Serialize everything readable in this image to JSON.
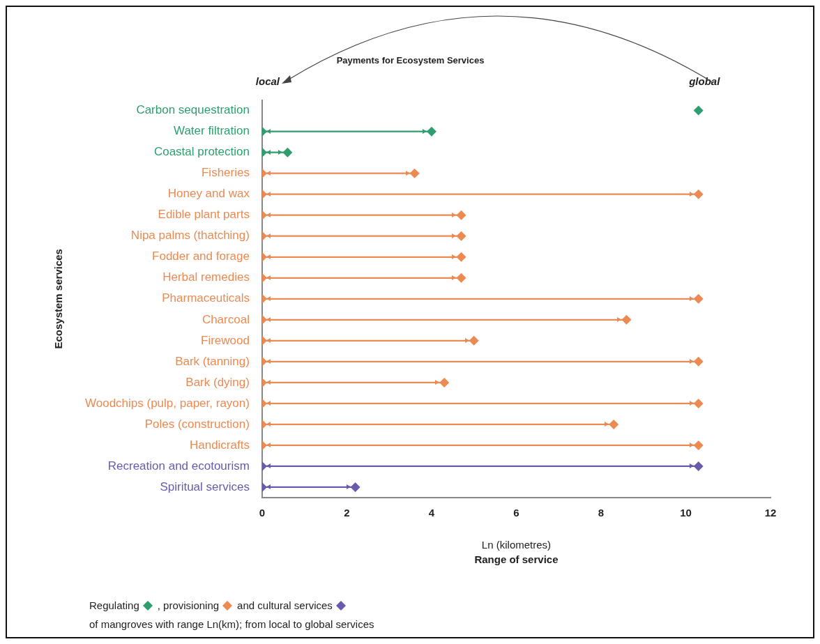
{
  "chart_data": {
    "type": "lollipop",
    "orientation": "horizontal",
    "title": "Payments for Ecosystem Services",
    "xlabel": "Ln (kilometres)",
    "ylabel": "Ecosystem services",
    "categories": [
      "Carbon sequestration",
      "Water filtration",
      "Coastal protection",
      "Fisheries",
      "Honey and wax",
      "Edible plant parts",
      "Nipa palms (thatching)",
      "Fodder and forage",
      "Herbal remedies",
      "Pharmaceuticals",
      "Charcoal",
      "Firewood",
      "Bark (tanning)",
      "Bark (dying)",
      "Woodchips (pulp, paper, rayon)",
      "Poles (construction)",
      "Handicrafts",
      "Recreation and ecotourism",
      "Spiritual services"
    ],
    "series": [
      {
        "name": "Regulating",
        "color": "#2e9e6e",
        "values": [
          null,
          4.0,
          0.6,
          null,
          null,
          null,
          null,
          null,
          null,
          null,
          null,
          null,
          null,
          null,
          null,
          null,
          null,
          null,
          null
        ]
      },
      {
        "name": ", provisioning",
        "color": "#ec8a52",
        "values": [
          null,
          null,
          null,
          3.6,
          10.3,
          4.7,
          4.7,
          4.7,
          4.7,
          10.3,
          8.6,
          5.0,
          10.3,
          4.3,
          10.3,
          8.3,
          10.3,
          null,
          null
        ]
      },
      {
        "name": "and cultural services",
        "color": "#6a5aad",
        "values": [
          null,
          null,
          null,
          null,
          null,
          null,
          null,
          null,
          null,
          null,
          null,
          null,
          null,
          null,
          null,
          null,
          null,
          10.3,
          2.2
        ]
      },
      {
        "type": "scatter",
        "color": "#2e9e6e",
        "values": [
          10.3,
          null,
          null,
          null,
          null,
          null,
          null,
          null,
          null,
          null,
          null,
          null,
          null,
          null,
          null,
          null,
          null,
          null,
          null
        ]
      },
      {
        "type": "scatter",
        "colors": [
          "#2e9e6e",
          "#2e9e6e",
          "#2e9e6e",
          "#ec8a52",
          "#ec8a52",
          "#ec8a52",
          "#ec8a52",
          "#ec8a52",
          "#ec8a52",
          "#ec8a52",
          "#ec8a52",
          "#ec8a52",
          "#ec8a52",
          "#ec8a52",
          "#ec8a52",
          "#ec8a52",
          "#ec8a52",
          "#6a5aad",
          "#6a5aad"
        ],
        "values": [
          null,
          0,
          0,
          0,
          0,
          0,
          0,
          0,
          0,
          0,
          0,
          0,
          0,
          0,
          0,
          0,
          0,
          0,
          0
        ]
      }
    ],
    "xlim": [
      0,
      12
    ],
    "xticks": [
      0,
      2,
      4,
      6,
      8,
      10,
      12
    ],
    "grid": false,
    "marker": "diamond",
    "legend": "bottom left",
    "annotations": [
      "local",
      "global",
      "Range of service",
      "of mangroves with range Ln(km); from local to global services"
    ]
  }
}
